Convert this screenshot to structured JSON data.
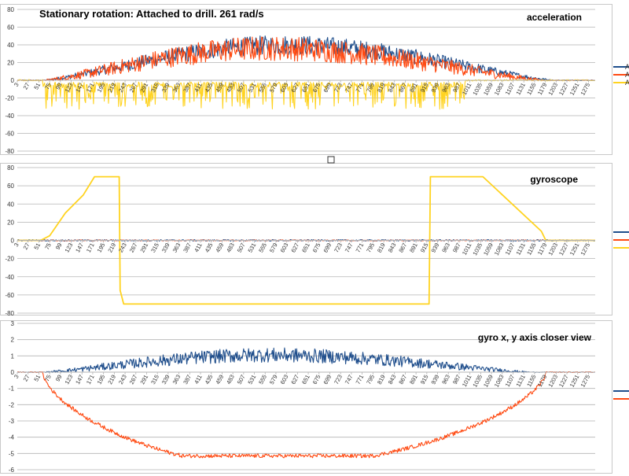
{
  "sheet": {
    "title": "Stationary rotation: Attached to drill. 261 rad/s",
    "colors": {
      "blue": "#1f4e8c",
      "orange": "#ff4a12",
      "yellow": "#ffd320"
    }
  },
  "chart_data": [
    {
      "type": "line",
      "title": "acceleration",
      "ylim": [
        -80,
        80
      ],
      "yticks": [
        -80,
        -60,
        -40,
        -20,
        0,
        20,
        40,
        60,
        80
      ],
      "xlim": [
        3,
        1290
      ],
      "xticks": [
        3,
        27,
        51,
        75,
        99,
        123,
        147,
        171,
        195,
        219,
        243,
        267,
        291,
        315,
        339,
        363,
        387,
        411,
        435,
        459,
        483,
        507,
        531,
        555,
        579,
        603,
        627,
        651,
        675,
        699,
        723,
        747,
        771,
        795,
        819,
        843,
        867,
        891,
        915,
        939,
        963,
        987,
        1011,
        1035,
        1059,
        1083,
        1107,
        1131,
        1155,
        1179,
        1203,
        1227,
        1251,
        1275
      ],
      "grid": true,
      "legend_position": "right",
      "legend": [
        "A",
        "A",
        "A"
      ],
      "series": [
        {
          "color": "#1f4e8c",
          "shape": "bell",
          "start": 60,
          "end": 1200,
          "peak_x": 600,
          "peak": 40,
          "noise": 11
        },
        {
          "color": "#ff4a12",
          "shape": "bell",
          "start": 60,
          "end": 1180,
          "peak_x": 560,
          "peak": 36,
          "noise": 14
        },
        {
          "color": "#ffd320",
          "shape": "negative-spikes",
          "start": 60,
          "end": 1000,
          "level": -5,
          "spike": -28
        }
      ]
    },
    {
      "type": "line",
      "title": "gyroscope",
      "ylim": [
        -80,
        80
      ],
      "yticks": [
        -80,
        -60,
        -40,
        -20,
        0,
        20,
        40,
        60,
        80
      ],
      "xlim": [
        3,
        1290
      ],
      "xticks": [
        3,
        27,
        51,
        75,
        99,
        123,
        147,
        171,
        195,
        219,
        243,
        267,
        291,
        315,
        339,
        363,
        387,
        411,
        435,
        459,
        483,
        507,
        531,
        555,
        579,
        603,
        627,
        651,
        675,
        699,
        723,
        747,
        771,
        795,
        819,
        843,
        867,
        891,
        915,
        939,
        963,
        987,
        1011,
        1035,
        1059,
        1083,
        1107,
        1131,
        1155,
        1179,
        1203,
        1227,
        1251,
        1275
      ],
      "grid": true,
      "legend_position": "right",
      "series": [
        {
          "color": "#1f4e8c",
          "shape": "flat",
          "level": 0,
          "noise": 0.8
        },
        {
          "color": "#ff4a12",
          "shape": "flat",
          "level": 0,
          "noise": 0.4
        },
        {
          "color": "#ffd320",
          "shape": "piecewise",
          "points": [
            [
              3,
              0
            ],
            [
              55,
              0
            ],
            [
              75,
              5
            ],
            [
              110,
              30
            ],
            [
              150,
              50
            ],
            [
              175,
              70
            ],
            [
              230,
              70
            ],
            [
              232,
              -55
            ],
            [
              240,
              -70
            ],
            [
              920,
              -70
            ],
            [
              923,
              70
            ],
            [
              1040,
              70
            ],
            [
              1170,
              10
            ],
            [
              1180,
              0
            ],
            [
              1290,
              0
            ]
          ]
        }
      ]
    },
    {
      "type": "line",
      "title": "gyro x, y axis closer view",
      "ylim": [
        -6,
        3
      ],
      "yticks": [
        -6,
        -5,
        -4,
        -3,
        -2,
        -1,
        0,
        1,
        2,
        3
      ],
      "xlim": [
        3,
        1290
      ],
      "xticks": [
        3,
        27,
        51,
        75,
        99,
        123,
        147,
        171,
        195,
        219,
        243,
        267,
        291,
        315,
        339,
        363,
        387,
        411,
        435,
        459,
        483,
        507,
        531,
        555,
        579,
        603,
        627,
        651,
        675,
        699,
        723,
        747,
        771,
        795,
        819,
        843,
        867,
        891,
        915,
        939,
        963,
        987,
        1011,
        1035,
        1059,
        1083,
        1107,
        1131,
        1155,
        1179,
        1203,
        1227,
        1251,
        1275
      ],
      "grid": true,
      "legend_position": "right",
      "series": [
        {
          "color": "#1f4e8c",
          "shape": "bell",
          "start": 60,
          "end": 1150,
          "peak_x": 560,
          "peak": 1.05,
          "noise": 0.45
        },
        {
          "color": "#ff4a12",
          "shape": "bowl",
          "start": 60,
          "end": 1180,
          "trough_x": 560,
          "trough": -5.15,
          "noise": 0.12
        }
      ]
    }
  ]
}
